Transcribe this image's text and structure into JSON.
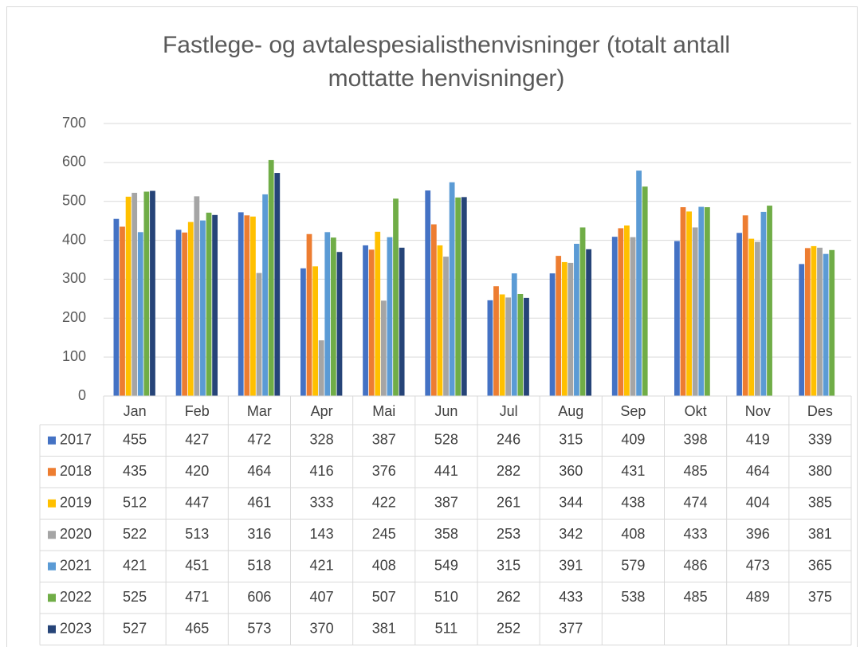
{
  "chart_data": {
    "type": "bar",
    "title": "Fastlege- og avtalespesialisthenvisninger (totalt antall mottatte henvisninger)",
    "categories": [
      "Jan",
      "Feb",
      "Mar",
      "Apr",
      "Mai",
      "Jun",
      "Jul",
      "Aug",
      "Sep",
      "Okt",
      "Nov",
      "Des"
    ],
    "series": [
      {
        "name": "2017",
        "color": "#4472c4",
        "values": [
          455,
          427,
          472,
          328,
          387,
          528,
          246,
          315,
          409,
          398,
          419,
          339
        ]
      },
      {
        "name": "2018",
        "color": "#ed7d31",
        "values": [
          435,
          420,
          464,
          416,
          376,
          441,
          282,
          360,
          431,
          485,
          464,
          380
        ]
      },
      {
        "name": "2019",
        "color": "#ffc000",
        "values": [
          512,
          447,
          461,
          333,
          422,
          387,
          261,
          344,
          438,
          474,
          404,
          385
        ]
      },
      {
        "name": "2020",
        "color": "#a5a5a5",
        "values": [
          522,
          513,
          316,
          143,
          245,
          358,
          253,
          342,
          408,
          433,
          396,
          381
        ]
      },
      {
        "name": "2021",
        "color": "#5b9bd5",
        "values": [
          421,
          451,
          518,
          421,
          408,
          549,
          315,
          391,
          579,
          486,
          473,
          365
        ]
      },
      {
        "name": "2022",
        "color": "#70ad47",
        "values": [
          525,
          471,
          606,
          407,
          507,
          510,
          262,
          433,
          538,
          485,
          489,
          375
        ]
      },
      {
        "name": "2023",
        "color": "#264478",
        "values": [
          527,
          465,
          573,
          370,
          381,
          511,
          252,
          377,
          null,
          null,
          null,
          null
        ]
      }
    ],
    "ylim": [
      0,
      700
    ],
    "yticks": [
      0,
      100,
      200,
      300,
      400,
      500,
      600,
      700
    ],
    "grid": true
  }
}
